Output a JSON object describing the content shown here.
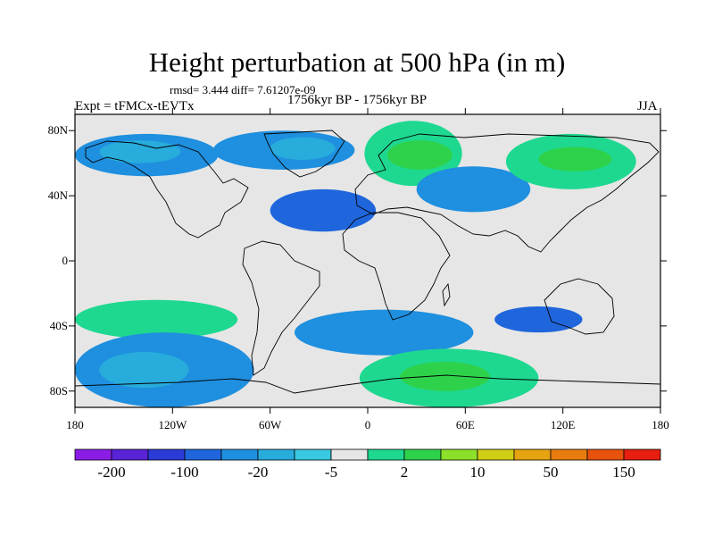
{
  "title": "Height perturbation at 500 hPa (in m)",
  "stats_line": "rmsd= 3.444 diff= 7.61207e-09",
  "experiment": "Expt = tFMCx-tEVTx",
  "period": "1756kyr BP - 1756kyr BP",
  "season": "JJA",
  "map": {
    "projection": "cylindrical-equidistant",
    "lon_range": [
      -180,
      180
    ],
    "lat_range": [
      -90,
      90
    ],
    "lat_ticks": [
      {
        "lat": 80,
        "label": "80N"
      },
      {
        "lat": 40,
        "label": "40N"
      },
      {
        "lat": 0,
        "label": "0"
      },
      {
        "lat": -40,
        "label": "40S"
      },
      {
        "lat": -80,
        "label": "80S"
      }
    ],
    "lon_ticks": [
      {
        "lon": -180,
        "label": "180"
      },
      {
        "lon": -120,
        "label": "120W"
      },
      {
        "lon": -60,
        "label": "60W"
      },
      {
        "lon": 0,
        "label": "0"
      },
      {
        "lon": 60,
        "label": "60E"
      },
      {
        "lon": 120,
        "label": "120E"
      },
      {
        "lon": 180,
        "label": "180"
      }
    ],
    "background_color": "#e6e6e6",
    "regions": [
      {
        "name": "north-pacific-negative",
        "lon": [
          -180,
          -92
        ],
        "lat": [
          52,
          78
        ],
        "level": 4
      },
      {
        "name": "north-pacific-negative-core",
        "lon": [
          -165,
          -115
        ],
        "lat": [
          60,
          74
        ],
        "level": 5
      },
      {
        "name": "greenland-negative",
        "lon": [
          -95,
          -8
        ],
        "lat": [
          56,
          80
        ],
        "level": 4
      },
      {
        "name": "greenland-negative-core",
        "lon": [
          -60,
          -20
        ],
        "lat": [
          62,
          76
        ],
        "level": 5
      },
      {
        "name": "arctic-europe-positive",
        "lon": [
          -2,
          58
        ],
        "lat": [
          46,
          86
        ],
        "level": 8
      },
      {
        "name": "scandinavia-positive-core",
        "lon": [
          12,
          52
        ],
        "lat": [
          56,
          74
        ],
        "level": 9
      },
      {
        "name": "west-siberia-negative",
        "lon": [
          30,
          100
        ],
        "lat": [
          30,
          58
        ],
        "level": 4
      },
      {
        "name": "east-siberia-positive",
        "lon": [
          85,
          165
        ],
        "lat": [
          44,
          78
        ],
        "level": 8
      },
      {
        "name": "east-siberia-positive-core",
        "lon": [
          105,
          150
        ],
        "lat": [
          55,
          70
        ],
        "level": 9
      },
      {
        "name": "pacific-northwest-positive",
        "lon": [
          -178,
          -120
        ],
        "lat": [
          36,
          50
        ],
        "level": 7
      },
      {
        "name": "north-atlantic-negative",
        "lon": [
          -60,
          5
        ],
        "lat": [
          18,
          44
        ],
        "level": 3
      },
      {
        "name": "southeast-asia-positive",
        "lon": [
          98,
          128
        ],
        "lat": [
          20,
          40
        ],
        "level": 7
      },
      {
        "name": "south-pacific-positive",
        "lon": [
          -180,
          -80
        ],
        "lat": [
          -48,
          -24
        ],
        "level": 8
      },
      {
        "name": "south-pacific-negative",
        "lon": [
          -180,
          -70
        ],
        "lat": [
          -90,
          -44
        ],
        "level": 4
      },
      {
        "name": "south-pacific-negative-core",
        "lon": [
          -165,
          -110
        ],
        "lat": [
          -78,
          -56
        ],
        "level": 5
      },
      {
        "name": "south-atlantic-negative",
        "lon": [
          -45,
          65
        ],
        "lat": [
          -58,
          -30
        ],
        "level": 4
      },
      {
        "name": "southern-ocean-positive",
        "lon": [
          -5,
          105
        ],
        "lat": [
          -90,
          -54
        ],
        "level": 8
      },
      {
        "name": "southern-ocean-positive-core",
        "lon": [
          20,
          75
        ],
        "lat": [
          -80,
          -62
        ],
        "level": 9
      },
      {
        "name": "tasman-positive",
        "lon": [
          130,
          180
        ],
        "lat": [
          -80,
          -24
        ],
        "level": 7
      },
      {
        "name": "indian-ocean-negative",
        "lon": [
          78,
          132
        ],
        "lat": [
          -44,
          -28
        ],
        "level": 3
      }
    ]
  },
  "colorbar": {
    "colors": [
      "#8b1ce6",
      "#5a23d8",
      "#2a3bd6",
      "#1f66dc",
      "#1f8fdf",
      "#27acdc",
      "#38c8e0",
      "#e6e6e6",
      "#1ed890",
      "#2ed24a",
      "#8ce02a",
      "#d0cf15",
      "#e6a410",
      "#e87c0e",
      "#e8520c",
      "#e61f10"
    ],
    "labels": [
      {
        "edge": 1,
        "text": "-200"
      },
      {
        "edge": 3,
        "text": "-100"
      },
      {
        "edge": 5,
        "text": "-20"
      },
      {
        "edge": 7,
        "text": "-5"
      },
      {
        "edge": 9,
        "text": "2"
      },
      {
        "edge": 11,
        "text": "10"
      },
      {
        "edge": 13,
        "text": "50"
      },
      {
        "edge": 15,
        "text": "150"
      }
    ]
  }
}
